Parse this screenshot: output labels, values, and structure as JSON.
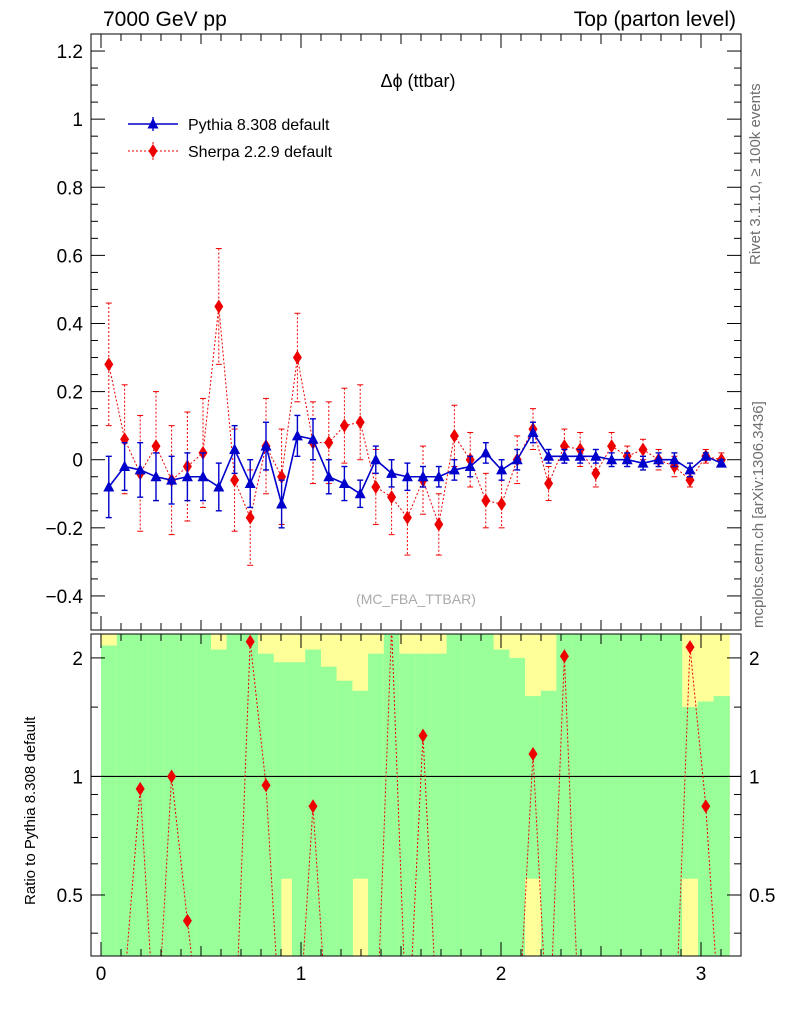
{
  "header": {
    "left": "7000 GeV pp",
    "right": "Top (parton level)"
  },
  "side_labels": {
    "rivet": "Rivet 3.1.10, ≥ 100k events",
    "mcplots": "mcplots.cern.ch [arXiv:1306.3436]"
  },
  "chart_data": [
    {
      "type": "scatter",
      "panel": "main",
      "title": "Δϕ (ttbar)",
      "watermark": "(MC_FBA_TTBAR)",
      "xlim": [
        -0.05,
        3.2
      ],
      "ylim": [
        -0.5,
        1.25
      ],
      "x_ticks": [
        0,
        1,
        2,
        3
      ],
      "y_ticks": [
        -0.4,
        -0.2,
        0,
        0.2,
        0.4,
        0.6,
        0.8,
        1,
        1.2
      ],
      "y_tick_labels": [
        "−0.4",
        "−0.2",
        "0",
        "0.2",
        "0.4",
        "0.6",
        "0.8",
        "1",
        "1.2"
      ],
      "legend_position": "top-left",
      "colors": {
        "pythia": "#0000cc",
        "sherpa": "#ee0000"
      },
      "x": [
        0.039,
        0.118,
        0.196,
        0.275,
        0.353,
        0.432,
        0.51,
        0.589,
        0.668,
        0.746,
        0.825,
        0.903,
        0.982,
        1.06,
        1.139,
        1.217,
        1.296,
        1.374,
        1.453,
        1.532,
        1.61,
        1.689,
        1.767,
        1.846,
        1.924,
        2.003,
        2.081,
        2.16,
        2.238,
        2.317,
        2.396,
        2.474,
        2.553,
        2.631,
        2.71,
        2.788,
        2.867,
        2.945,
        3.024,
        3.102
      ],
      "series": [
        {
          "name": "Pythia 8.308 default",
          "marker": "triangle",
          "y": [
            -0.08,
            -0.02,
            -0.03,
            -0.05,
            -0.06,
            -0.05,
            -0.05,
            -0.08,
            0.03,
            -0.07,
            0.04,
            -0.13,
            0.07,
            0.06,
            -0.05,
            -0.07,
            -0.1,
            0.0,
            -0.04,
            -0.05,
            -0.05,
            -0.05,
            -0.03,
            -0.02,
            0.02,
            -0.03,
            0.0,
            0.08,
            0.01,
            0.01,
            0.01,
            0.01,
            0.0,
            0.0,
            -0.01,
            0.0,
            0.0,
            -0.03,
            0.01,
            -0.01
          ],
          "err": [
            0.09,
            0.07,
            0.08,
            0.07,
            0.07,
            0.07,
            0.07,
            0.07,
            0.07,
            0.07,
            0.07,
            0.07,
            0.06,
            0.06,
            0.05,
            0.05,
            0.04,
            0.04,
            0.04,
            0.04,
            0.03,
            0.03,
            0.03,
            0.03,
            0.03,
            0.03,
            0.03,
            0.03,
            0.02,
            0.02,
            0.02,
            0.02,
            0.02,
            0.02,
            0.02,
            0.02,
            0.02,
            0.02,
            0.01,
            0.01
          ]
        },
        {
          "name": "Sherpa 2.2.9 default",
          "marker": "diamond",
          "y": [
            0.28,
            0.06,
            -0.04,
            0.04,
            -0.06,
            -0.02,
            0.02,
            0.45,
            -0.06,
            -0.17,
            0.04,
            -0.05,
            0.3,
            0.05,
            0.05,
            0.1,
            0.11,
            -0.08,
            -0.11,
            -0.17,
            -0.06,
            -0.19,
            0.07,
            0.0,
            -0.12,
            -0.13,
            0.0,
            0.09,
            -0.07,
            0.04,
            0.03,
            -0.04,
            0.04,
            0.01,
            0.03,
            0.0,
            -0.02,
            -0.06,
            0.01,
            0.0
          ],
          "err": [
            0.18,
            0.16,
            0.17,
            0.16,
            0.16,
            0.16,
            0.16,
            0.17,
            0.15,
            0.14,
            0.14,
            0.14,
            0.13,
            0.12,
            0.12,
            0.11,
            0.11,
            0.11,
            0.11,
            0.11,
            0.1,
            0.09,
            0.09,
            0.08,
            0.08,
            0.07,
            0.07,
            0.06,
            0.05,
            0.05,
            0.05,
            0.04,
            0.04,
            0.03,
            0.03,
            0.03,
            0.03,
            0.02,
            0.02,
            0.02
          ]
        }
      ]
    },
    {
      "type": "line",
      "panel": "ratio",
      "ylabel": "Ratio to Pythia 8.308 default",
      "xlim": [
        -0.05,
        3.2
      ],
      "ylim": [
        0.35,
        2.3
      ],
      "y_log_scale": true,
      "x_ticks": [
        0,
        1,
        2,
        3
      ],
      "y_ticks": [
        0.5,
        1,
        2
      ],
      "y_tick_labels": [
        "0.5",
        "1",
        "2"
      ],
      "band_colors": {
        "green": "#99ff99",
        "yellow": "#ffff99"
      },
      "band_edges": [
        0.0,
        0.079,
        0.157,
        0.236,
        0.314,
        0.393,
        0.471,
        0.55,
        0.628,
        0.707,
        0.785,
        0.864,
        0.942,
        1.021,
        1.1,
        1.178,
        1.257,
        1.335,
        1.414,
        1.492,
        1.571,
        1.649,
        1.728,
        1.806,
        1.885,
        1.963,
        2.042,
        2.12,
        2.199,
        2.277,
        2.356,
        2.435,
        2.513,
        2.592,
        2.67,
        2.749,
        2.827,
        2.906,
        2.984,
        3.063,
        3.142
      ],
      "band_green_hi": [
        2.15,
        2.3,
        2.3,
        2.3,
        2.3,
        2.3,
        2.3,
        2.1,
        2.3,
        2.3,
        2.05,
        1.95,
        1.95,
        2.1,
        1.9,
        1.75,
        1.65,
        2.05,
        2.3,
        2.05,
        2.05,
        2.05,
        2.3,
        2.3,
        2.3,
        2.1,
        2.0,
        1.6,
        1.65,
        2.3,
        2.3,
        2.3,
        2.3,
        2.3,
        2.3,
        2.3,
        2.3,
        1.5,
        1.55,
        1.6
      ],
      "band_yellow_hi": [
        2.3,
        2.3,
        2.3,
        2.3,
        2.3,
        2.3,
        2.3,
        2.3,
        2.3,
        2.3,
        2.3,
        2.3,
        2.3,
        2.3,
        2.3,
        2.3,
        2.3,
        2.3,
        2.3,
        2.3,
        2.3,
        2.3,
        2.3,
        2.3,
        2.3,
        2.3,
        2.3,
        2.3,
        2.3,
        2.3,
        2.3,
        2.3,
        2.3,
        2.3,
        2.3,
        2.3,
        2.3,
        2.3,
        2.3,
        2.3
      ],
      "sherpa_ratio": [
        0.2,
        0.3,
        0.93,
        0.2,
        1.0,
        0.43,
        0.2,
        0.2,
        0.2,
        2.2,
        0.95,
        0.2,
        0.2,
        0.84,
        0.2,
        0.2,
        0.2,
        0.2,
        2.4,
        0.2,
        1.27,
        0.2,
        0.2,
        0.2,
        0.2,
        0.2,
        0.2,
        1.14,
        0.2,
        2.02,
        0.2,
        0.2,
        0.2,
        0.2,
        0.2,
        0.2,
        0.2,
        2.13,
        0.84,
        0.2
      ]
    }
  ],
  "legend": [
    {
      "name": "Pythia 8.308 default",
      "color": "#0000cc",
      "marker": "triangle"
    },
    {
      "name": "Sherpa 2.2.9 default",
      "color": "#ee0000",
      "marker": "diamond"
    }
  ]
}
